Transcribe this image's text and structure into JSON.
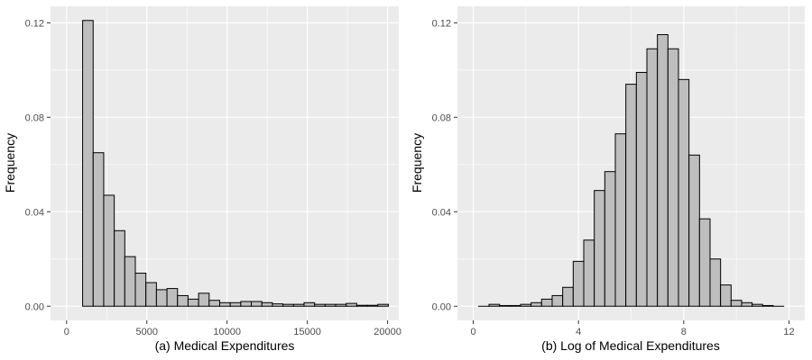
{
  "chart_data": [
    {
      "type": "bar",
      "xlabel": "(a) Medical Expenditures",
      "ylabel": "Frequency",
      "xlim": [
        -1000,
        20700
      ],
      "ylim": [
        -0.006,
        0.127
      ],
      "xticks": [
        0,
        5000,
        10000,
        15000,
        20000
      ],
      "xtick_labels": [
        "0",
        "5000",
        "10000",
        "15000",
        "20000"
      ],
      "yticks": [
        0,
        0.04,
        0.08,
        0.12
      ],
      "ytick_labels": [
        "0.00",
        "0.04",
        "0.08",
        "0.12"
      ],
      "grid": true,
      "bin_start": 1000,
      "bin_width": 657,
      "values": [
        0.121,
        0.065,
        0.047,
        0.032,
        0.021,
        0.014,
        0.01,
        0.007,
        0.0075,
        0.0045,
        0.003,
        0.0055,
        0.0025,
        0.0015,
        0.0015,
        0.002,
        0.002,
        0.0015,
        0.001,
        0.0008,
        0.0008,
        0.0015,
        0.0008,
        0.0008,
        0.0008,
        0.0012,
        0.0004,
        0.0004,
        0.0008
      ],
      "colors": {
        "bar_fill": "#bebebe",
        "bar_stroke": "#000000",
        "panel": "#ebebeb",
        "grid": "#ffffff"
      }
    },
    {
      "type": "bar",
      "xlabel": "(b) Log of Medical Expenditures",
      "ylabel": "Frequency",
      "xlim": [
        -0.6,
        12.6
      ],
      "ylim": [
        -0.006,
        0.127
      ],
      "xticks": [
        0,
        4,
        8,
        12
      ],
      "xtick_labels": [
        "0",
        "4",
        "8",
        "12"
      ],
      "yticks": [
        0,
        0.04,
        0.08,
        0.12
      ],
      "ytick_labels": [
        "0.00",
        "0.04",
        "0.08",
        "0.12"
      ],
      "grid": true,
      "bin_start": 0.2,
      "bin_width": 0.4,
      "values": [
        0.0,
        0.0008,
        0.0003,
        0.0003,
        0.0008,
        0.0015,
        0.003,
        0.0045,
        0.008,
        0.019,
        0.028,
        0.049,
        0.057,
        0.073,
        0.094,
        0.099,
        0.109,
        0.115,
        0.109,
        0.096,
        0.064,
        0.037,
        0.02,
        0.009,
        0.0025,
        0.0015,
        0.0008,
        0.0003,
        0.0
      ],
      "colors": {
        "bar_fill": "#bebebe",
        "bar_stroke": "#000000",
        "panel": "#ebebeb",
        "grid": "#ffffff"
      }
    }
  ]
}
